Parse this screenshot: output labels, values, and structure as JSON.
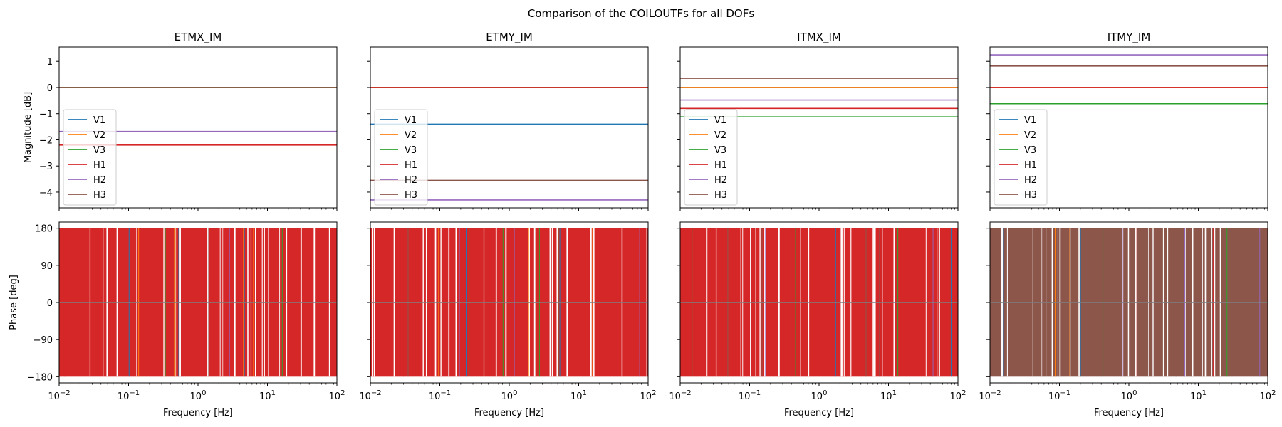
{
  "figure": {
    "title": "Comparison of the COILOUTFs for all DOFs"
  },
  "chart_data": {
    "type": "line",
    "panels": [
      "ETMX_IM",
      "ETMY_IM",
      "ITMX_IM",
      "ITMY_IM"
    ],
    "series_names": [
      "V1",
      "V2",
      "V3",
      "H1",
      "H2",
      "H3"
    ],
    "colors": [
      "#1f77b4",
      "#ff7f0e",
      "#2ca02c",
      "#d62728",
      "#9467bd",
      "#8c564b"
    ],
    "xscale": "log",
    "xlim": [
      0.01,
      100
    ],
    "xlabel": "Frequency [Hz]",
    "x_ticks": [
      0.01,
      0.1,
      1,
      10,
      100
    ],
    "x_tick_labels": [
      {
        "base": "10",
        "exp": "−2"
      },
      {
        "base": "10",
        "exp": "−1"
      },
      {
        "base": "10",
        "exp": "0"
      },
      {
        "base": "10",
        "exp": "1"
      },
      {
        "base": "10",
        "exp": "2"
      }
    ],
    "magnitude": {
      "ylabel": "Magnitude [dB]",
      "ylim": [
        -4.6,
        1.55
      ],
      "y_ticks": [
        1,
        0,
        -1,
        -2,
        -3,
        -4
      ],
      "y_tick_labels": [
        "1",
        "0",
        "−1",
        "−2",
        "−3",
        "−4"
      ],
      "legend_location": "center-left",
      "values_db": {
        "ETMX_IM": {
          "V1": 0.0,
          "V2": 0.0,
          "V3": 0.0,
          "H1": -2.2,
          "H2": -1.68,
          "H3": 0.0
        },
        "ETMY_IM": {
          "V1": -1.4,
          "V2": 0.0,
          "V3": 0.0,
          "H1": 0.0,
          "H2": -4.3,
          "H3": -3.55
        },
        "ITMX_IM": {
          "V1": 0.0,
          "V2": 0.0,
          "V3": -1.12,
          "H1": -0.8,
          "H2": -0.48,
          "H3": 0.35
        },
        "ITMY_IM": {
          "V1": 0.0,
          "V2": 0.0,
          "V3": -0.62,
          "H1": 0.0,
          "H2": 1.25,
          "H3": 0.82
        }
      }
    },
    "phase": {
      "ylabel": "Phase [deg]",
      "ylim": [
        -195,
        195
      ],
      "y_ticks": [
        180,
        90,
        0,
        -90,
        -180
      ],
      "y_tick_labels": [
        "180",
        "90",
        "0",
        "−90",
        "−180"
      ],
      "wrap_range": [
        -180,
        180
      ],
      "fill_color": {
        "ETMX_IM": "#d62728",
        "ETMY_IM": "#d62728",
        "ITMX_IM": "#d62728",
        "ITMY_IM": "#8c564b"
      },
      "zero_line_color": "#7f7f7f"
    }
  }
}
